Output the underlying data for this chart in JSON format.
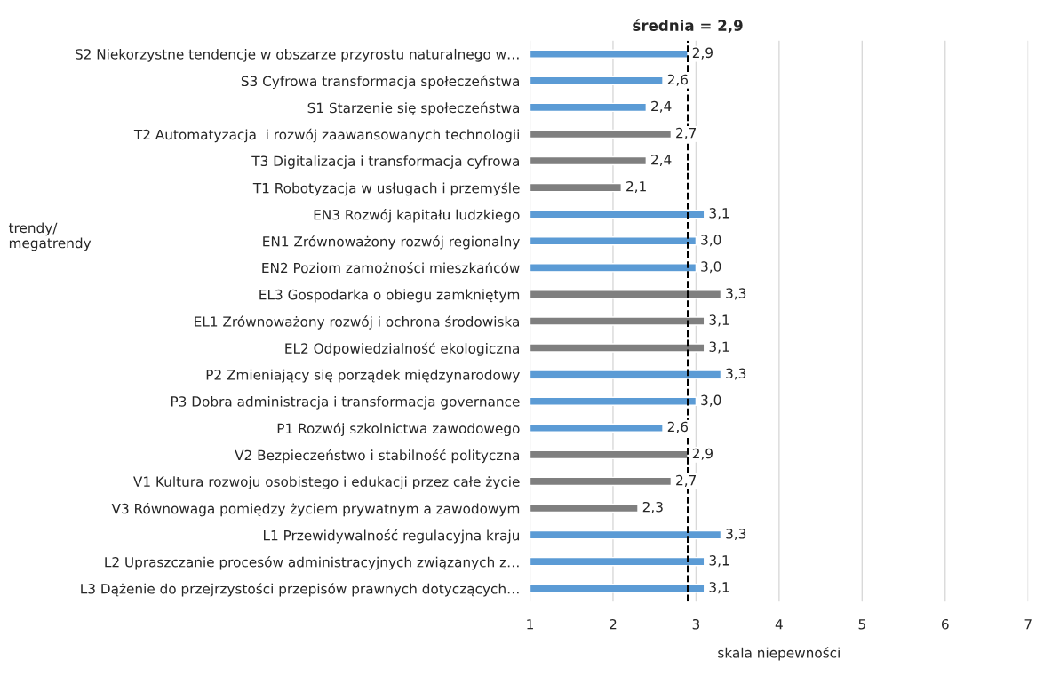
{
  "chart_data": {
    "type": "bar",
    "orientation": "horizontal",
    "categories": [
      "S2 Niekorzystne tendencje w obszarze przyrostu naturalnego w…",
      "S3 Cyfrowa transformacja społeczeństwa",
      "S1 Starzenie się społeczeństwa",
      "T2 Automatyzacja  i rozwój zaawansowanych technologii",
      "T3 Digitalizacja i transformacja cyfrowa",
      "T1 Robotyzacja w usługach i przemyśle",
      "EN3 Rozwój kapitału ludzkiego",
      "EN1 Zrównoważony rozwój regionalny",
      "EN2 Poziom zamożności mieszkańców",
      "EL3 Gospodarka o obiegu zamkniętym",
      "EL1 Zrównoważony rozwój i ochrona środowiska",
      "EL2 Odpowiedzialność ekologiczna",
      "P2 Zmieniający się porządek międzynarodowy",
      "P3 Dobra administracja i transformacja governance",
      "P1 Rozwój szkolnictwa zawodowego",
      "V2 Bezpieczeństwo i stabilność polityczna",
      "V1 Kultura rozwoju osobistego i edukacji przez całe życie",
      "V3 Równowaga pomiędzy życiem prywatnym a zawodowym",
      "L1 Przewidywalność regulacyjna kraju",
      "L2 Upraszczanie procesów administracyjnych związanych z…",
      "L3 Dążenie do przejrzystości przepisów prawnych dotyczących…"
    ],
    "values": [
      2.9,
      2.6,
      2.4,
      2.7,
      2.4,
      2.1,
      3.1,
      3.0,
      3.0,
      3.3,
      3.1,
      3.1,
      3.3,
      3.0,
      2.6,
      2.9,
      2.7,
      2.3,
      3.3,
      3.1,
      3.1
    ],
    "value_labels": [
      "2,9",
      "2,6",
      "2,4",
      "2,7",
      "2,4",
      "2,1",
      "3,1",
      "3,0",
      "3,0",
      "3,3",
      "3,1",
      "3,1",
      "3,3",
      "3,0",
      "2,6",
      "2,9",
      "2,7",
      "2,3",
      "3,3",
      "3,1",
      "3,1"
    ],
    "colors": [
      "#5b9bd5",
      "#5b9bd5",
      "#5b9bd5",
      "#7f7f7f",
      "#7f7f7f",
      "#7f7f7f",
      "#5b9bd5",
      "#5b9bd5",
      "#5b9bd5",
      "#7f7f7f",
      "#7f7f7f",
      "#7f7f7f",
      "#5b9bd5",
      "#5b9bd5",
      "#5b9bd5",
      "#7f7f7f",
      "#7f7f7f",
      "#7f7f7f",
      "#5b9bd5",
      "#5b9bd5",
      "#5b9bd5"
    ],
    "xlim": [
      1,
      7
    ],
    "xticks": [
      1,
      2,
      3,
      4,
      5,
      6,
      7
    ],
    "xlabel": "skala niepewności",
    "ylabel": "trendy/\nmegatrendy",
    "ref_lines": [
      {
        "axis": "x",
        "value": 2.9,
        "label": "średnia = 2,9",
        "color": "#000000",
        "line_style": "dashed"
      }
    ],
    "grid": "x",
    "legend": false
  }
}
